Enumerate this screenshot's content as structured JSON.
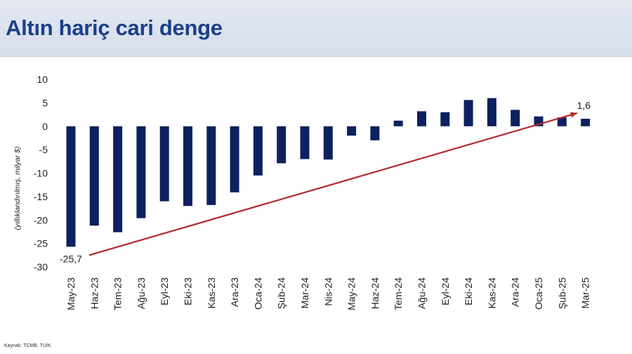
{
  "header": {
    "title": "Altın hariç cari denge"
  },
  "footer": {
    "source": "Kaynak: TCMB, TÜİK"
  },
  "colors": {
    "bar": "#0d2160",
    "trend": "#b5272d",
    "header_bg": "#dde3ee",
    "title": "#1b3f8c"
  },
  "chart_data": {
    "type": "bar",
    "title": "Altın hariç cari denge",
    "ylabel": "(yıllıklandırılmış, milyar $)",
    "xlabel": "",
    "ylim": [
      -30,
      10
    ],
    "yticks": [
      10,
      5,
      0,
      -5,
      -10,
      -15,
      -20,
      -25,
      -30
    ],
    "grid": false,
    "legend": "none",
    "categories": [
      "May-23",
      "Haz-23",
      "Tem-23",
      "Ağu-23",
      "Eyl-23",
      "Eki-23",
      "Kas-23",
      "Ara-23",
      "Oca-24",
      "Şub-24",
      "Mar-24",
      "Nis-24",
      "May-24",
      "Haz-24",
      "Tem-24",
      "Ağu-24",
      "Eyl-24",
      "Eki-24",
      "Kas-24",
      "Ara-24",
      "Oca-25",
      "Şub-25",
      "Mar-25"
    ],
    "values": [
      -25.7,
      -21.2,
      -22.6,
      -19.6,
      -16.0,
      -17.0,
      -16.8,
      -14.1,
      -10.5,
      -7.9,
      -7.0,
      -7.1,
      -2.0,
      -3.0,
      1.2,
      3.2,
      3.0,
      5.6,
      6.0,
      3.5,
      2.1,
      1.9,
      1.6
    ],
    "annotations": [
      {
        "category": "May-23",
        "value": -25.7,
        "label": "-25,7"
      },
      {
        "category": "Mar-25",
        "value": 1.6,
        "label": "1,6"
      }
    ],
    "trend_arrow": {
      "from_category": "May-23",
      "from_value": -27.5,
      "to_category": "Mar-25",
      "to_value": 2.8
    }
  }
}
